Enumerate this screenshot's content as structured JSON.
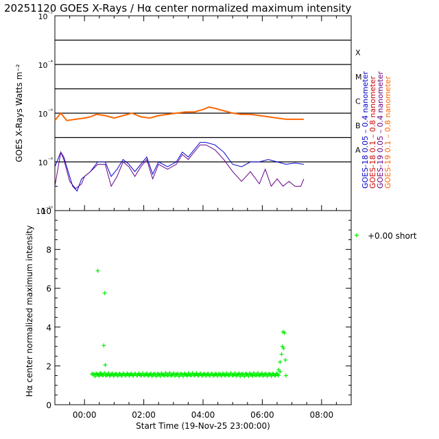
{
  "title": "20251120 GOES X-Rays / Hα center normalized maximum intensity",
  "colors": {
    "goes18_short": "#0000cc",
    "goes18_long": "#cc0000",
    "goes19_short": "#660088",
    "goes19_long": "#ff6600",
    "halpha": "#00ee00",
    "grid": "#000000"
  },
  "chart_data": [
    {
      "type": "line",
      "panel": "top",
      "ylabel": "GOES X-Rays Watts m⁻²",
      "yscale": "log",
      "ylim_exp": [
        -10,
        -2
      ],
      "ytick_labels": [
        "10⁻²",
        "10⁻⁴",
        "10⁻⁶",
        "10⁻⁸",
        "10⁻¹⁰"
      ],
      "flare_classes": [
        "X",
        "M",
        "C",
        "B",
        "A"
      ],
      "flare_class_exp": [
        -3.5,
        -4.5,
        -5.5,
        -6.5,
        -7.5
      ],
      "grid_exp": [
        -3,
        -4,
        -5,
        -6,
        -7,
        -8
      ],
      "xlim_hours": [
        -1,
        9
      ],
      "legend": [
        {
          "label": "GOES-18 0.05 – 0.4 nanometer",
          "color": "#0000cc"
        },
        {
          "label": "GOES-18 0.1 – 0.8 nanometer",
          "color": "#cc0000"
        },
        {
          "label": "GOES-19 0.05 – 0.4 nanometer",
          "color": "#660088"
        },
        {
          "label": "GOES-19 0.1 – 0.8 nanometer",
          "color": "#ff6600"
        }
      ],
      "series": [
        {
          "name": "GOES-19 0.1 – 0.8 nanometer",
          "color": "#ff6600",
          "x": [
            -1.0,
            -0.8,
            -0.6,
            -0.3,
            0.0,
            0.2,
            0.4,
            0.7,
            1.0,
            1.3,
            1.6,
            1.9,
            2.2,
            2.5,
            2.8,
            3.1,
            3.4,
            3.7,
            4.0,
            4.2,
            4.4,
            4.7,
            5.0,
            5.3,
            5.6,
            5.9,
            6.2,
            6.5,
            6.8,
            7.1,
            7.4
          ],
          "y_exp": [
            -6.3,
            -6.0,
            -6.3,
            -6.25,
            -6.2,
            -6.15,
            -6.05,
            -6.1,
            -6.2,
            -6.1,
            -6.0,
            -6.15,
            -6.2,
            -6.1,
            -6.05,
            -6.0,
            -5.95,
            -5.95,
            -5.85,
            -5.75,
            -5.8,
            -5.9,
            -6.0,
            -6.05,
            -6.05,
            -6.1,
            -6.15,
            -6.2,
            -6.25,
            -6.25,
            -6.25
          ]
        },
        {
          "name": "GOES-18 0.05 – 0.4 nanometer",
          "color": "#0000cc",
          "x": [
            -1.0,
            -0.8,
            -0.7,
            -0.55,
            -0.4,
            -0.25,
            -0.1,
            0.0,
            0.2,
            0.45,
            0.7,
            0.9,
            1.1,
            1.3,
            1.5,
            1.7,
            1.9,
            2.1,
            2.3,
            2.5,
            2.8,
            3.1,
            3.3,
            3.5,
            3.7,
            3.9,
            4.1,
            4.4,
            4.7,
            5.0,
            5.3,
            5.6,
            5.9,
            6.2,
            6.5,
            6.8,
            7.1,
            7.4
          ],
          "y_exp": [
            -8.2,
            -7.6,
            -7.8,
            -8.4,
            -9.0,
            -9.2,
            -8.7,
            -8.6,
            -8.4,
            -8.0,
            -8.0,
            -8.6,
            -8.3,
            -7.9,
            -8.1,
            -8.4,
            -8.1,
            -7.8,
            -8.5,
            -8.0,
            -8.2,
            -8.0,
            -7.6,
            -7.8,
            -7.5,
            -7.2,
            -7.2,
            -7.3,
            -7.6,
            -8.1,
            -8.2,
            -8.0,
            -8.0,
            -7.9,
            -8.0,
            -8.1,
            -8.05,
            -8.1
          ]
        },
        {
          "name": "GOES-19 0.05 – 0.4 nanometer",
          "color": "#660088",
          "x": [
            -1.0,
            -0.8,
            -0.7,
            -0.5,
            -0.3,
            -0.1,
            0.0,
            0.2,
            0.45,
            0.7,
            0.9,
            1.1,
            1.3,
            1.5,
            1.7,
            1.9,
            2.1,
            2.3,
            2.5,
            2.8,
            3.1,
            3.3,
            3.5,
            3.7,
            3.9,
            4.1,
            4.4,
            4.7,
            5.0,
            5.3,
            5.6,
            5.9,
            6.1,
            6.3,
            6.5,
            6.7,
            6.9,
            7.1,
            7.3,
            7.4
          ],
          "y_exp": [
            -9.0,
            -7.6,
            -7.9,
            -8.8,
            -9.1,
            -8.9,
            -8.6,
            -8.4,
            -8.1,
            -8.1,
            -9.0,
            -8.6,
            -8.0,
            -8.2,
            -8.6,
            -8.2,
            -7.9,
            -8.7,
            -8.1,
            -8.3,
            -8.1,
            -7.7,
            -7.9,
            -7.6,
            -7.3,
            -7.3,
            -7.5,
            -7.9,
            -8.4,
            -8.8,
            -8.4,
            -8.9,
            -8.3,
            -9.0,
            -8.7,
            -9.0,
            -8.8,
            -9.0,
            -9.0,
            -8.7
          ]
        }
      ]
    },
    {
      "type": "scatter",
      "panel": "bottom",
      "ylabel": "Hα center normalized maximum intensity",
      "xlabel": "Start Time (19-Nov-25 23:00:00)",
      "ylim": [
        0,
        10
      ],
      "yticks": [
        0,
        2,
        4,
        6,
        8,
        10
      ],
      "xlim_hours": [
        -1,
        9
      ],
      "xtick_hours": [
        0,
        2,
        4,
        6,
        8
      ],
      "xtick_labels": [
        "00:00",
        "02:00",
        "04:00",
        "06:00",
        "08:00"
      ],
      "legend_label": "+0.00 short",
      "marker": "+",
      "baseline_range_hours": [
        0.25,
        6.55
      ],
      "baseline_value": 1.55,
      "points": [
        {
          "x": 0.45,
          "y": 6.9
        },
        {
          "x": 0.68,
          "y": 5.75
        },
        {
          "x": 0.65,
          "y": 3.05
        },
        {
          "x": 0.7,
          "y": 2.05
        },
        {
          "x": 0.55,
          "y": 1.6
        },
        {
          "x": 6.55,
          "y": 1.8
        },
        {
          "x": 6.6,
          "y": 2.2
        },
        {
          "x": 6.65,
          "y": 2.6
        },
        {
          "x": 6.68,
          "y": 3.0
        },
        {
          "x": 6.72,
          "y": 2.9
        },
        {
          "x": 6.7,
          "y": 3.75
        },
        {
          "x": 6.75,
          "y": 3.7
        },
        {
          "x": 6.78,
          "y": 2.3
        },
        {
          "x": 6.6,
          "y": 1.7
        },
        {
          "x": 6.8,
          "y": 1.5
        }
      ]
    }
  ]
}
